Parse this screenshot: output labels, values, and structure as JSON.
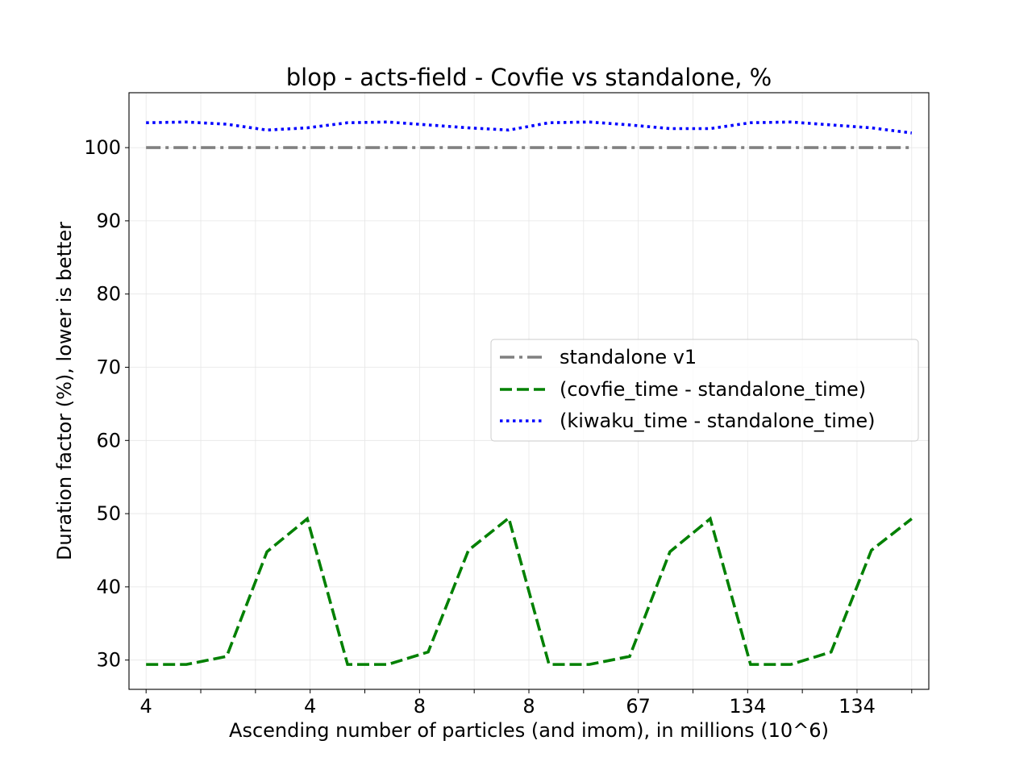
{
  "chart_data": {
    "type": "line",
    "title": "blop - acts-field - Covfie vs standalone, %",
    "xlabel": "Ascending number of particles (and imom), in millions (10^6)",
    "ylabel": "Duration factor (%), lower is better",
    "x_tick_labels": [
      "4",
      "",
      "",
      "4",
      "",
      "8",
      "",
      "8",
      "",
      "67",
      "",
      "134",
      "",
      "134",
      ""
    ],
    "y_ticks": [
      30,
      40,
      50,
      60,
      70,
      80,
      90,
      100
    ],
    "ylim": [
      26,
      107.5
    ],
    "xlim": [
      -0.3125,
      14.3125
    ],
    "grid": true,
    "legend_position": "center-right",
    "series": [
      {
        "name": "standalone v1",
        "style": "dashdot",
        "color": "#808080",
        "values": [
          100,
          100,
          100,
          100,
          100,
          100,
          100,
          100,
          100,
          100,
          100,
          100,
          100,
          100,
          100,
          100,
          100,
          100,
          100,
          100,
          100,
          100,
          100,
          100,
          100,
          100,
          100,
          100,
          100,
          100,
          100,
          100,
          100,
          100,
          100,
          100,
          100,
          100,
          100,
          100,
          100,
          100,
          100,
          100,
          100,
          100,
          100,
          100,
          100,
          100,
          100,
          100,
          100,
          100,
          100,
          100,
          100,
          100,
          100,
          100,
          100,
          100,
          100
        ]
      },
      {
        "name": "(covfie_time - standalone_time)",
        "style": "dashed",
        "color": "#008000",
        "values": [
          29.4,
          29.4,
          30.5,
          44.8,
          49.3,
          29.4,
          29.4,
          31.1,
          45.0,
          49.4,
          29.4,
          29.4,
          30.5,
          44.8,
          49.3,
          29.4,
          29.4,
          31.1,
          45.0,
          49.3
        ]
      },
      {
        "name": "(kiwaku_time - standalone_time)",
        "style": "dotted",
        "color": "#0000ff",
        "values": [
          103.4,
          103.5,
          103.2,
          102.4,
          102.7,
          103.4,
          103.5,
          103.1,
          102.7,
          102.4,
          103.4,
          103.5,
          103.1,
          102.6,
          102.6,
          103.4,
          103.5,
          103.1,
          102.7,
          102.0
        ]
      }
    ]
  }
}
